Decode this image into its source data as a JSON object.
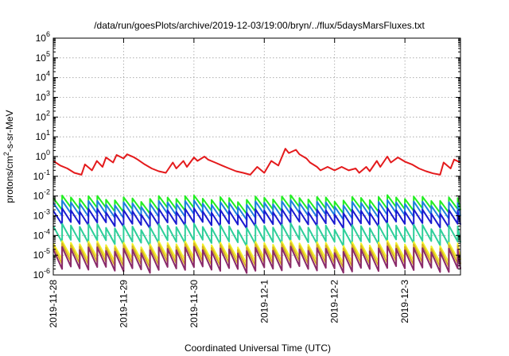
{
  "chart_data": {
    "type": "line",
    "title": "/data/run/goesPlots/archive/2019-12-03/19:00/bryn/../flux/5daysMarsFluxes.txt",
    "xlabel": "Coordinated Universal Time (UTC)",
    "ylabel": "protons/cm²-s-sr-MeV",
    "y_scale": "log",
    "ylim_exp": [
      -6,
      6
    ],
    "xlim_days": [
      "2019-11-28",
      "2019-12-03 19:00"
    ],
    "x_ticks": [
      "2019-11-28",
      "2019-11-29",
      "2019-11-30",
      "2019-12-1",
      "2019-12-2",
      "2019-12-3"
    ],
    "grid": true,
    "x_unit": "days since 2019-11-28 00:00 UTC",
    "series": [
      {
        "color": "#e41a1c",
        "x": [
          0.0,
          0.1,
          0.2,
          0.3,
          0.4,
          0.45,
          0.55,
          0.62,
          0.7,
          0.75,
          0.85,
          0.9,
          1.0,
          1.05,
          1.15,
          1.2,
          1.3,
          1.4,
          1.5,
          1.6,
          1.7,
          1.75,
          1.85,
          1.9,
          2.0,
          2.05,
          2.15,
          2.2,
          2.3,
          2.4,
          2.5,
          2.6,
          2.7,
          2.8,
          2.9,
          3.0,
          3.1,
          3.2,
          3.3,
          3.35,
          3.45,
          3.5,
          3.6,
          3.65,
          3.75,
          3.8,
          3.9,
          4.0,
          4.1,
          4.2,
          4.3,
          4.35,
          4.45,
          4.5,
          4.6,
          4.65,
          4.75,
          4.8,
          4.9,
          5.0,
          5.1,
          5.2,
          5.3,
          5.4,
          5.5,
          5.55,
          5.65,
          5.7,
          5.79
        ],
        "y": [
          0.6,
          0.35,
          0.25,
          0.15,
          0.12,
          0.4,
          0.2,
          0.6,
          0.3,
          0.9,
          0.5,
          1.2,
          0.8,
          1.3,
          0.9,
          0.7,
          0.4,
          0.25,
          0.18,
          0.15,
          0.5,
          0.25,
          0.6,
          0.3,
          0.9,
          0.6,
          1.0,
          0.7,
          0.5,
          0.35,
          0.25,
          0.18,
          0.15,
          0.12,
          0.3,
          0.15,
          0.6,
          0.35,
          2.5,
          1.5,
          2.2,
          1.3,
          0.8,
          0.5,
          0.3,
          0.2,
          0.3,
          0.2,
          0.3,
          0.2,
          0.25,
          0.15,
          0.3,
          0.18,
          0.6,
          0.3,
          1.0,
          0.5,
          0.9,
          0.55,
          0.4,
          0.25,
          0.18,
          0.14,
          0.12,
          0.5,
          0.25,
          0.7,
          0.5
        ]
      },
      {
        "color": "#22ee22",
        "base": 0.008,
        "drop": 0.25,
        "period": 0.125
      },
      {
        "color": "#1e7fe0",
        "base": 0.0045,
        "drop": 0.22,
        "period": 0.125
      },
      {
        "color": "#1a1ad0",
        "base": 0.0018,
        "drop": 0.2,
        "period": 0.125
      },
      {
        "color": "#2ecf9a",
        "base": 0.0003,
        "drop": 0.15,
        "period": 0.125
      },
      {
        "color": "#f2f22a",
        "base": 4e-05,
        "drop": 0.15,
        "period": 0.125
      },
      {
        "color": "#d8b020",
        "base": 3e-05,
        "drop": 0.12,
        "period": 0.125
      },
      {
        "color": "#8a2a6a",
        "base": 2e-05,
        "drop": 0.1,
        "period": 0.125
      }
    ]
  }
}
